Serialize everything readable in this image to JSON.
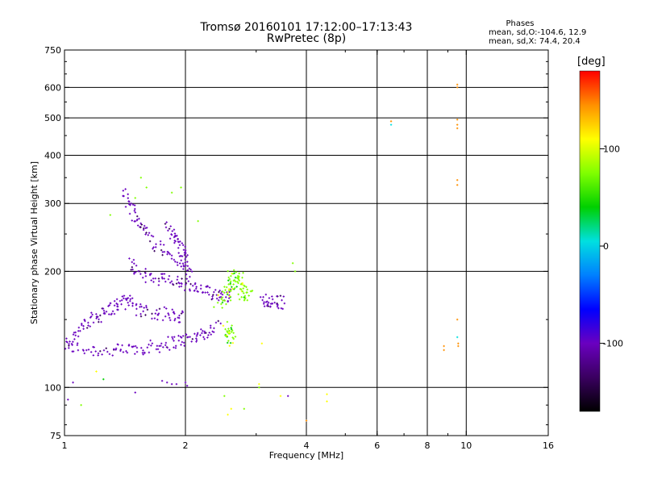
{
  "header": {
    "title_line1": "Tromsø 20160101 17:12:00–17:13:43",
    "title_line2": "RwPretec (8p)"
  },
  "stats": {
    "title": "Phases",
    "line1": "mean, sd,O:-104.6, 12.9",
    "line2": "mean, sd,X: 74.4, 20.4"
  },
  "colorbar": {
    "label": "[deg]",
    "ticks": [
      100,
      0,
      -100
    ],
    "range": [
      -170,
      180
    ],
    "colors": [
      "#000000",
      "#3a0060",
      "#6a00c0",
      "#0000ff",
      "#0080ff",
      "#00e0e0",
      "#00d000",
      "#80ff00",
      "#ffff00",
      "#ff9000",
      "#ff0000"
    ]
  },
  "chart_data": {
    "type": "scatter",
    "title": "Tromsø 20160101 17:12:00–17:13:43",
    "subtitle": "RwPretec (8p)",
    "xlabel": "Frequency [MHz]",
    "ylabel": "Stationary phase Virtual Height [km]",
    "x_scale": "log",
    "y_scale": "log",
    "xlim": [
      1,
      16
    ],
    "ylim": [
      75,
      750
    ],
    "x_ticks": [
      1,
      2,
      4,
      6,
      8,
      10,
      16
    ],
    "y_ticks": [
      75,
      100,
      200,
      300,
      400,
      500,
      600,
      750
    ],
    "grid_x": [
      2,
      4,
      6,
      8,
      10
    ],
    "grid_y": [
      100,
      200,
      300,
      400,
      500,
      600
    ],
    "color_variable": "phase [deg]",
    "series": [
      {
        "name": "O",
        "color_range": [
          -120,
          -90
        ],
        "traces": [
          {
            "x": [
              1.0,
              1.1,
              1.2,
              1.3,
              1.4,
              1.5,
              1.6,
              1.7,
              1.8,
              1.9,
              2.0,
              2.1,
              2.2,
              2.3,
              2.45
            ],
            "y": [
              128,
              126,
              125,
              124,
              125,
              126,
              127,
              128,
              130,
              132,
              133,
              135,
              138,
              140,
              145
            ]
          },
          {
            "x": [
              1.0,
              1.05,
              1.1,
              1.15,
              1.2,
              1.25,
              1.3,
              1.35,
              1.4,
              1.45,
              1.5
            ],
            "y": [
              130,
              135,
              142,
              148,
              152,
              156,
              160,
              163,
              166,
              168,
              170
            ]
          },
          {
            "x": [
              1.4,
              1.45,
              1.5,
              1.55,
              1.6,
              1.7,
              1.8,
              1.9,
              2.0,
              2.1
            ],
            "y": [
              320,
              300,
              280,
              265,
              250,
              235,
              225,
              215,
              205,
              195
            ]
          },
          {
            "x": [
              1.45,
              1.5,
              1.6,
              1.7,
              1.8,
              1.9,
              2.0,
              2.1,
              2.2,
              2.3,
              2.4,
              2.5,
              2.6
            ],
            "y": [
              210,
              200,
              195,
              192,
              190,
              188,
              185,
              180,
              178,
              176,
              175,
              174,
              173
            ]
          },
          {
            "x": [
              1.5,
              1.6,
              1.7,
              1.8,
              1.9,
              2.0
            ],
            "y": [
              160,
              158,
              156,
              155,
              153,
              151
            ]
          },
          {
            "x": [
              1.8,
              1.85,
              1.9,
              1.95,
              2.0,
              2.02
            ],
            "y": [
              260,
              250,
              240,
              230,
              220,
              210
            ]
          },
          {
            "x": [
              3.1,
              3.2,
              3.3,
              3.4,
              3.5
            ],
            "y": [
              168,
              168,
              167,
              167,
              166
            ]
          }
        ],
        "points": {
          "x": [
            1.02,
            1.05,
            1.5,
            1.75,
            1.8,
            1.85,
            1.9,
            2.0,
            2.02,
            3.6
          ],
          "y": [
            93,
            103,
            97,
            104,
            103,
            102,
            102,
            103,
            101,
            95
          ]
        }
      },
      {
        "name": "X",
        "color_range": [
          50,
          100
        ],
        "clusters": [
          {
            "x": [
              2.4,
              2.5,
              2.6,
              2.7,
              2.8
            ],
            "y": [
              165,
              170,
              180,
              185,
              178
            ]
          },
          {
            "x": [
              2.55,
              2.6,
              2.7,
              2.75,
              2.8,
              2.9
            ],
            "y": [
              185,
              190,
              200,
              180,
              175,
              170
            ]
          },
          {
            "x": [
              2.5,
              2.55,
              2.6,
              2.65
            ],
            "y": [
              145,
              140,
              135,
              133
            ]
          }
        ],
        "points": {
          "x": [
            1.1,
            1.2,
            1.25,
            1.3,
            1.5,
            1.55,
            1.6,
            1.85,
            1.95,
            2.15,
            2.5,
            2.55,
            2.6,
            2.8,
            3.05,
            3.05,
            3.1,
            3.7,
            3.75,
            3.45,
            4.0,
            4.5,
            4.5,
            6.5,
            6.5,
            8.8,
            8.8,
            9.5,
            9.5,
            9.5,
            9.5,
            9.5,
            9.5,
            9.5,
            9.5,
            9.5,
            9.55,
            9.55
          ],
          "y": [
            90,
            110,
            105,
            280,
            310,
            350,
            330,
            320,
            330,
            270,
            95,
            85,
            88,
            88,
            100,
            102,
            130,
            210,
            200,
            95,
            82,
            92,
            96,
            480,
            490,
            125,
            128,
            610,
            600,
            495,
            480,
            470,
            345,
            335,
            150,
            135,
            130,
            128
          ]
        }
      }
    ]
  }
}
